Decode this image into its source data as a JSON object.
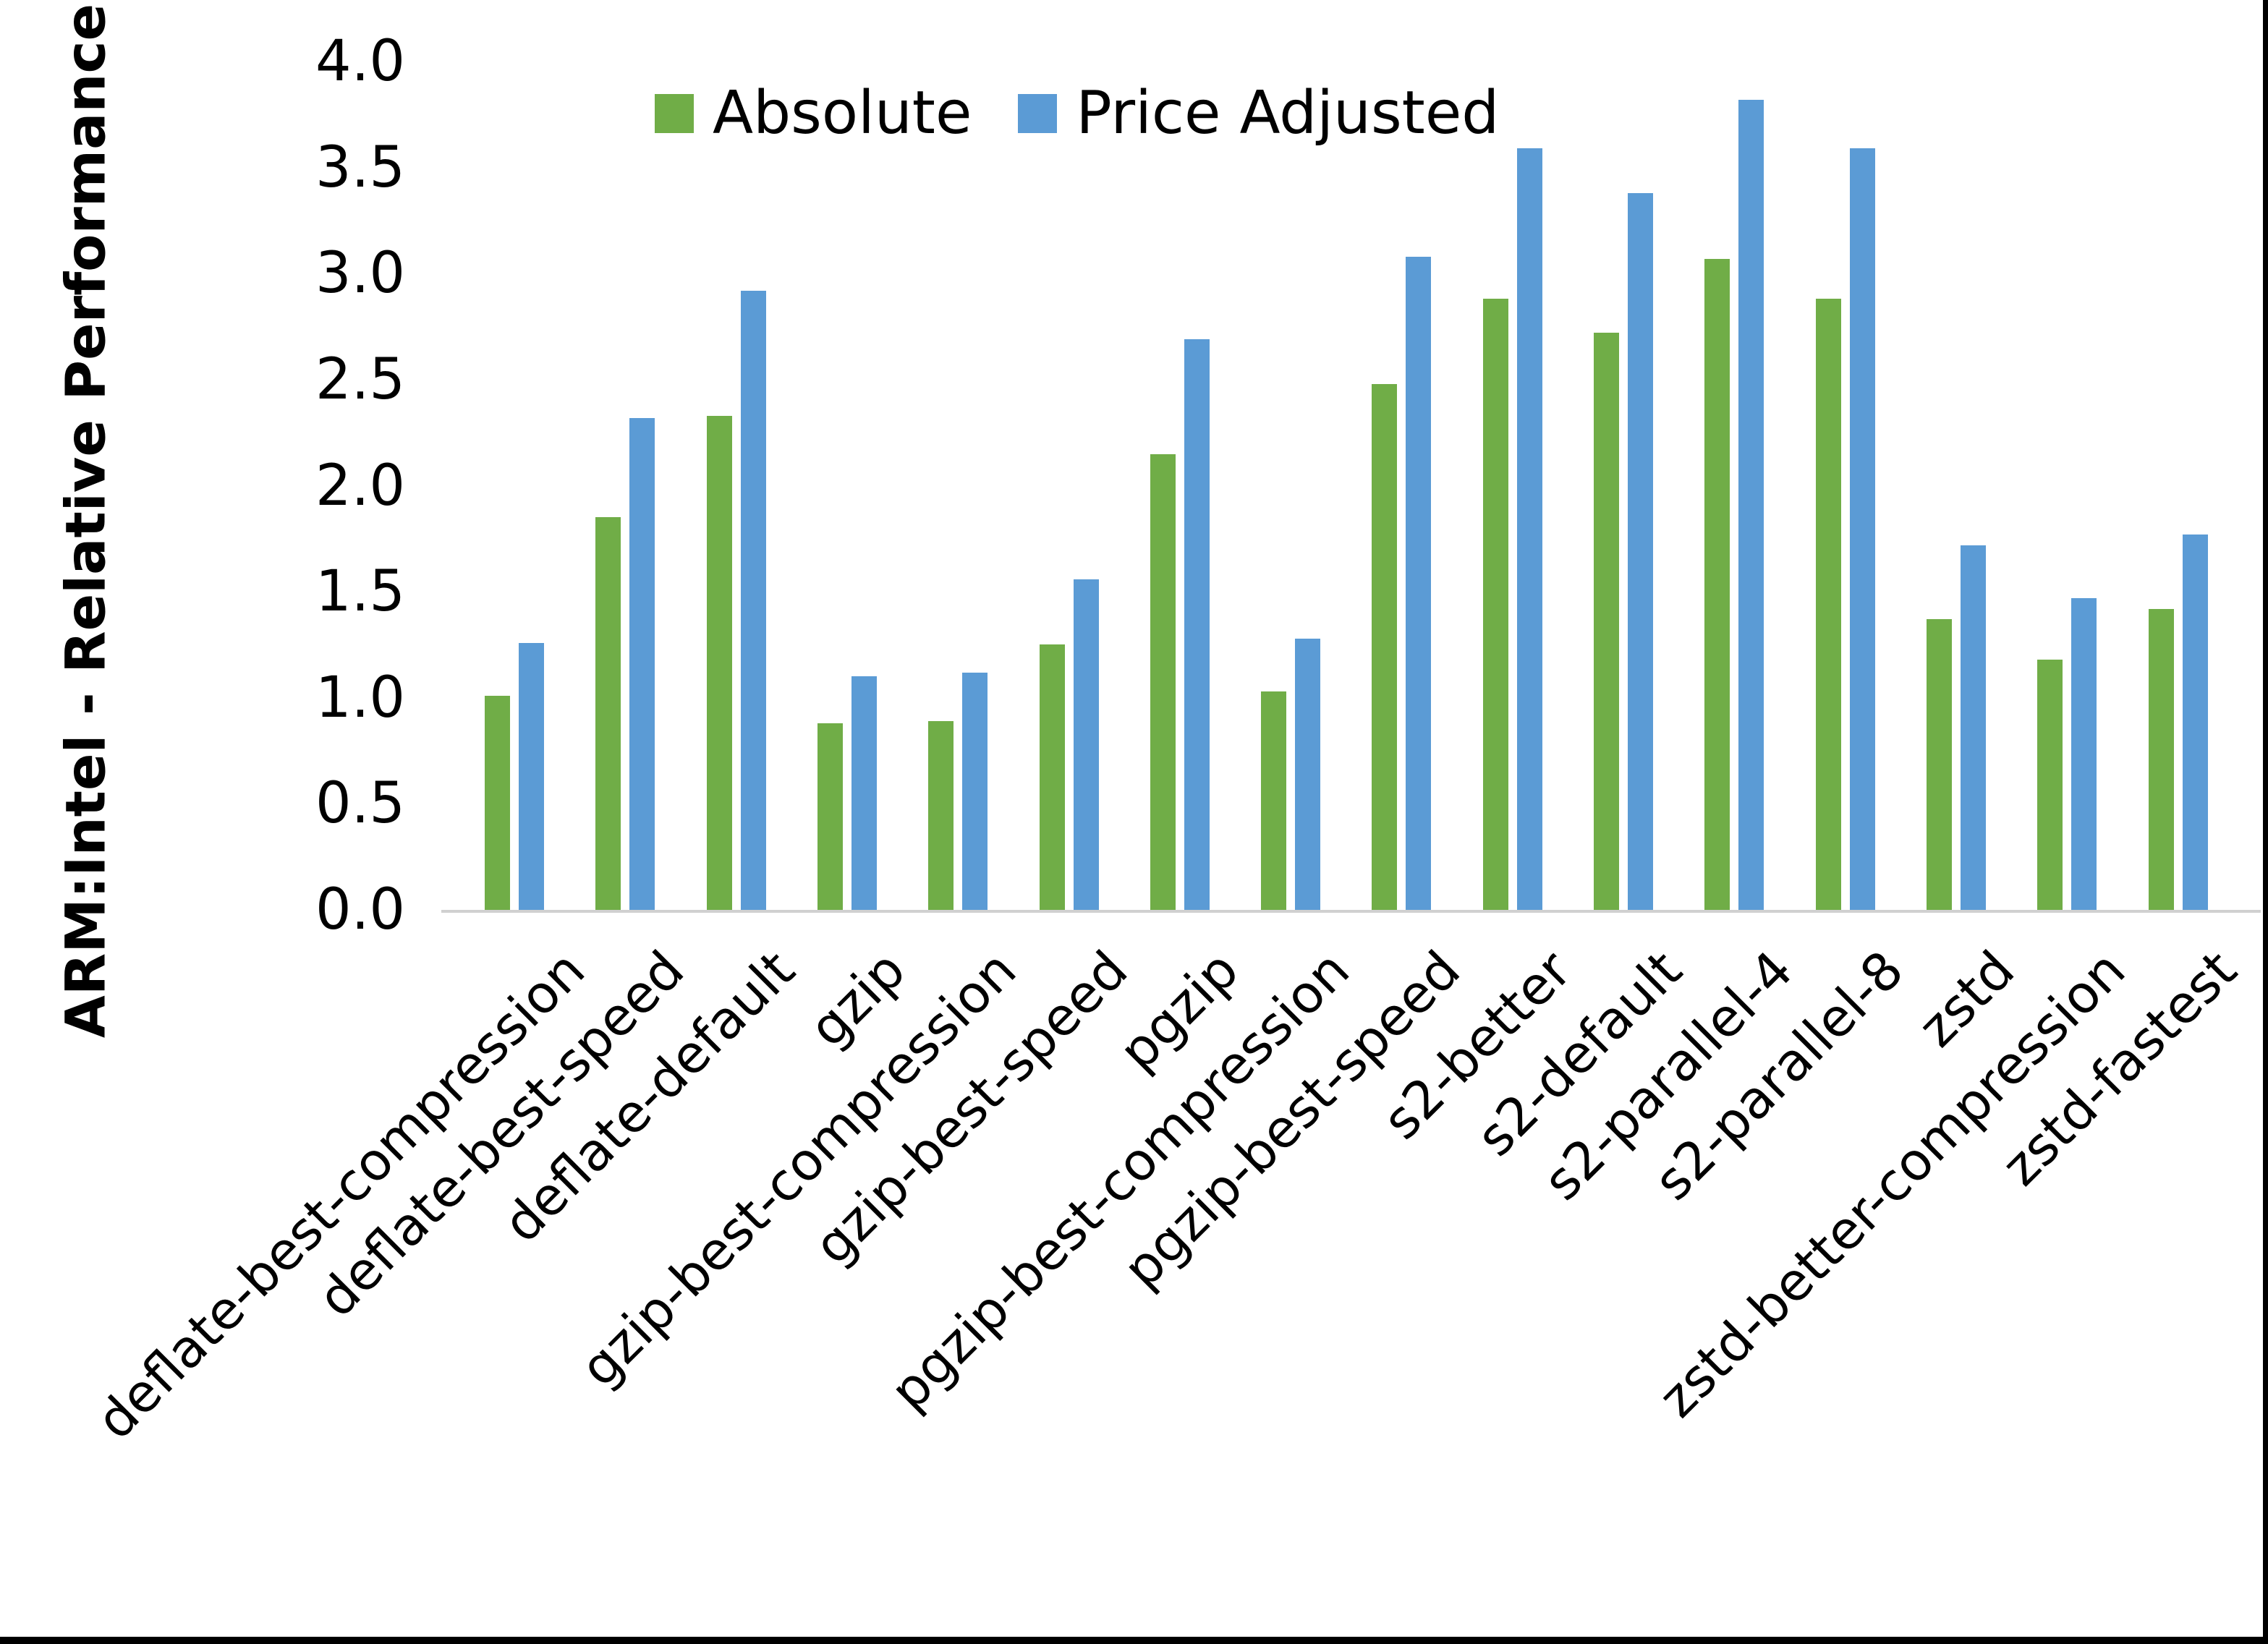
{
  "chart_data": {
    "type": "bar",
    "title": "",
    "xlabel": "",
    "ylabel": "ARM:Intel - Relative Performance",
    "ylim": [
      0.0,
      4.0
    ],
    "ytick_step": 0.5,
    "ytick_labels": [
      "0.0",
      "0.5",
      "1.0",
      "1.5",
      "2.0",
      "2.5",
      "3.0",
      "3.5",
      "4.0"
    ],
    "grid": false,
    "legend_position": "top-center",
    "categories": [
      "deflate-best-compression",
      "deflate-best-speed",
      "deflate-default",
      "gzip",
      "gzip-best-compression",
      "gzip-best-speed",
      "pgzip",
      "pgzip-best-compression",
      "pgzip-best-speed",
      "s2-better",
      "s2-default",
      "s2-parallel-4",
      "s2-parallel-8",
      "zstd",
      "zstd-better-compression",
      "zstd-fastest"
    ],
    "series": [
      {
        "name": "Absolute",
        "color": "#70AD47",
        "values": [
          1.01,
          1.85,
          2.33,
          0.88,
          0.89,
          1.25,
          2.15,
          1.03,
          2.48,
          2.88,
          2.72,
          3.07,
          2.88,
          1.37,
          1.18,
          1.42
        ]
      },
      {
        "name": "Price Adjusted",
        "color": "#5B9BD5",
        "values": [
          1.26,
          2.32,
          2.92,
          1.1,
          1.12,
          1.56,
          2.69,
          1.28,
          3.08,
          3.59,
          3.38,
          3.82,
          3.59,
          1.72,
          1.47,
          1.77
        ]
      }
    ]
  },
  "colors": {
    "axis_line": "#d0d0d0",
    "text": "#000000",
    "background": "#ffffff",
    "frame": "#000000"
  }
}
